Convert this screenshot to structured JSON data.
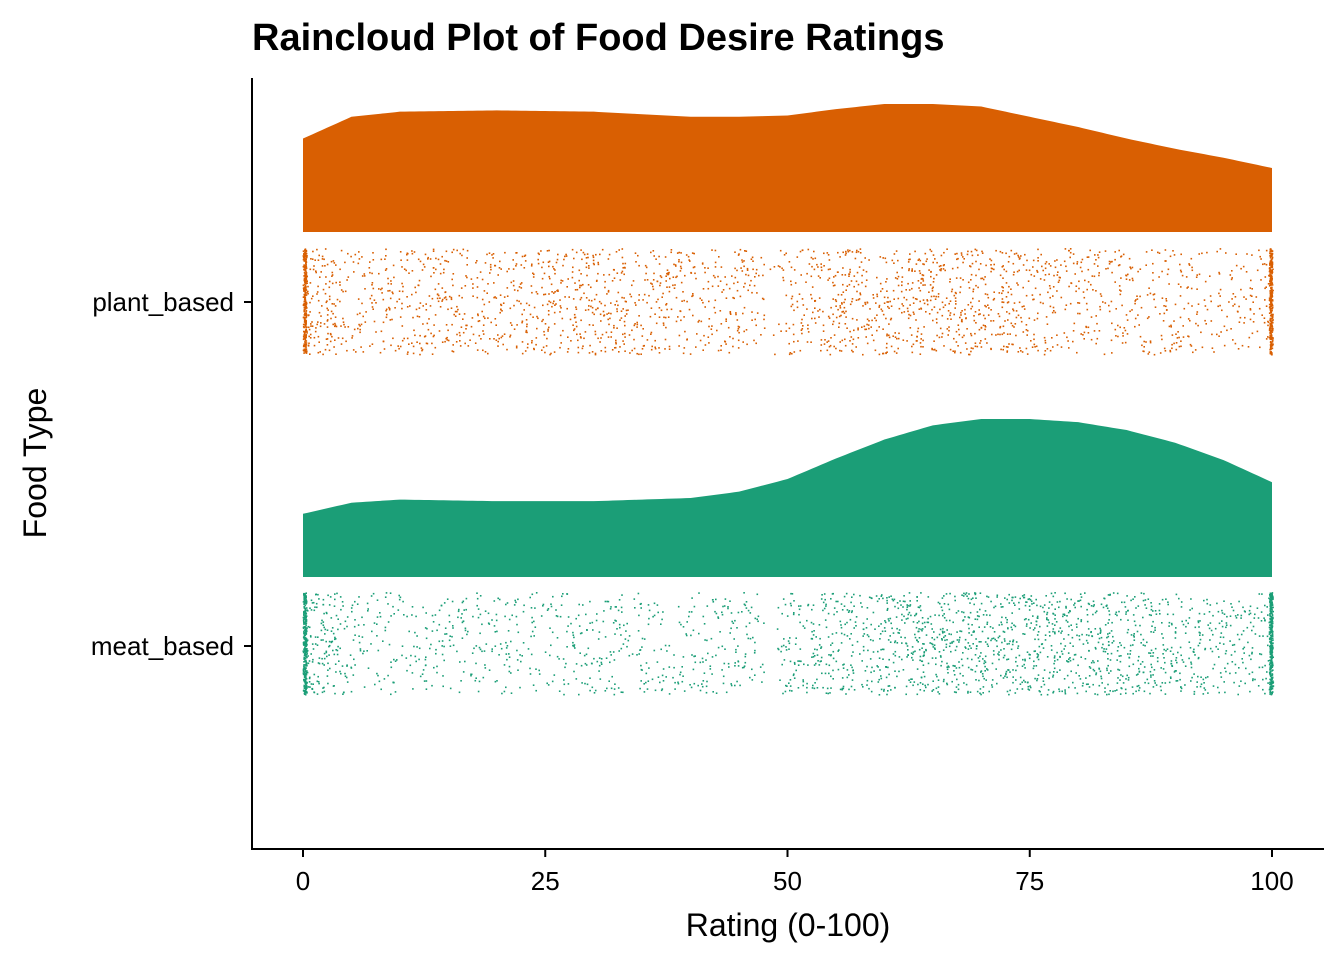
{
  "chart_data": {
    "type": "raincloud",
    "title": "Raincloud Plot of Food Desire Ratings",
    "xlabel": "Rating (0-100)",
    "ylabel": "Food Type",
    "xlim": [
      0,
      100
    ],
    "x_ticks": [
      0,
      25,
      50,
      75,
      100
    ],
    "categories": [
      "meat_based",
      "plant_based"
    ],
    "series": [
      {
        "name": "plant_based",
        "color": "#D95F02",
        "density_curve": {
          "x": [
            0,
            5,
            10,
            20,
            30,
            40,
            45,
            50,
            55,
            60,
            65,
            70,
            75,
            80,
            85,
            90,
            95,
            100
          ],
          "density": [
            0.73,
            0.9,
            0.94,
            0.95,
            0.94,
            0.9,
            0.9,
            0.91,
            0.96,
            1.0,
            1.0,
            0.98,
            0.9,
            0.82,
            0.73,
            0.65,
            0.58,
            0.5
          ]
        },
        "point_density": {
          "x": [
            0,
            5,
            10,
            20,
            30,
            40,
            47,
            48,
            50,
            55,
            60,
            65,
            70,
            75,
            80,
            85,
            90,
            95,
            99,
            100
          ],
          "relative": [
            1.0,
            0.35,
            0.45,
            0.55,
            0.55,
            0.5,
            0.5,
            0.0,
            0.4,
            0.6,
            0.65,
            0.65,
            0.6,
            0.55,
            0.5,
            0.45,
            0.4,
            0.35,
            0.35,
            1.0
          ]
        }
      },
      {
        "name": "meat_based",
        "color": "#1B9E77",
        "density_curve": {
          "x": [
            0,
            5,
            10,
            20,
            30,
            40,
            45,
            50,
            55,
            60,
            65,
            70,
            75,
            80,
            85,
            90,
            95,
            100
          ],
          "density": [
            0.4,
            0.47,
            0.49,
            0.48,
            0.48,
            0.5,
            0.54,
            0.62,
            0.75,
            0.87,
            0.96,
            1.0,
            1.0,
            0.98,
            0.93,
            0.85,
            0.74,
            0.6
          ]
        },
        "point_density": {
          "x": [
            0,
            5,
            10,
            20,
            30,
            40,
            47,
            48,
            50,
            55,
            60,
            65,
            70,
            75,
            80,
            85,
            90,
            95,
            99,
            100
          ],
          "relative": [
            1.0,
            0.3,
            0.3,
            0.3,
            0.3,
            0.35,
            0.35,
            0.0,
            0.4,
            0.55,
            0.65,
            0.75,
            0.8,
            0.75,
            0.7,
            0.6,
            0.5,
            0.45,
            0.45,
            1.0
          ]
        }
      }
    ]
  }
}
